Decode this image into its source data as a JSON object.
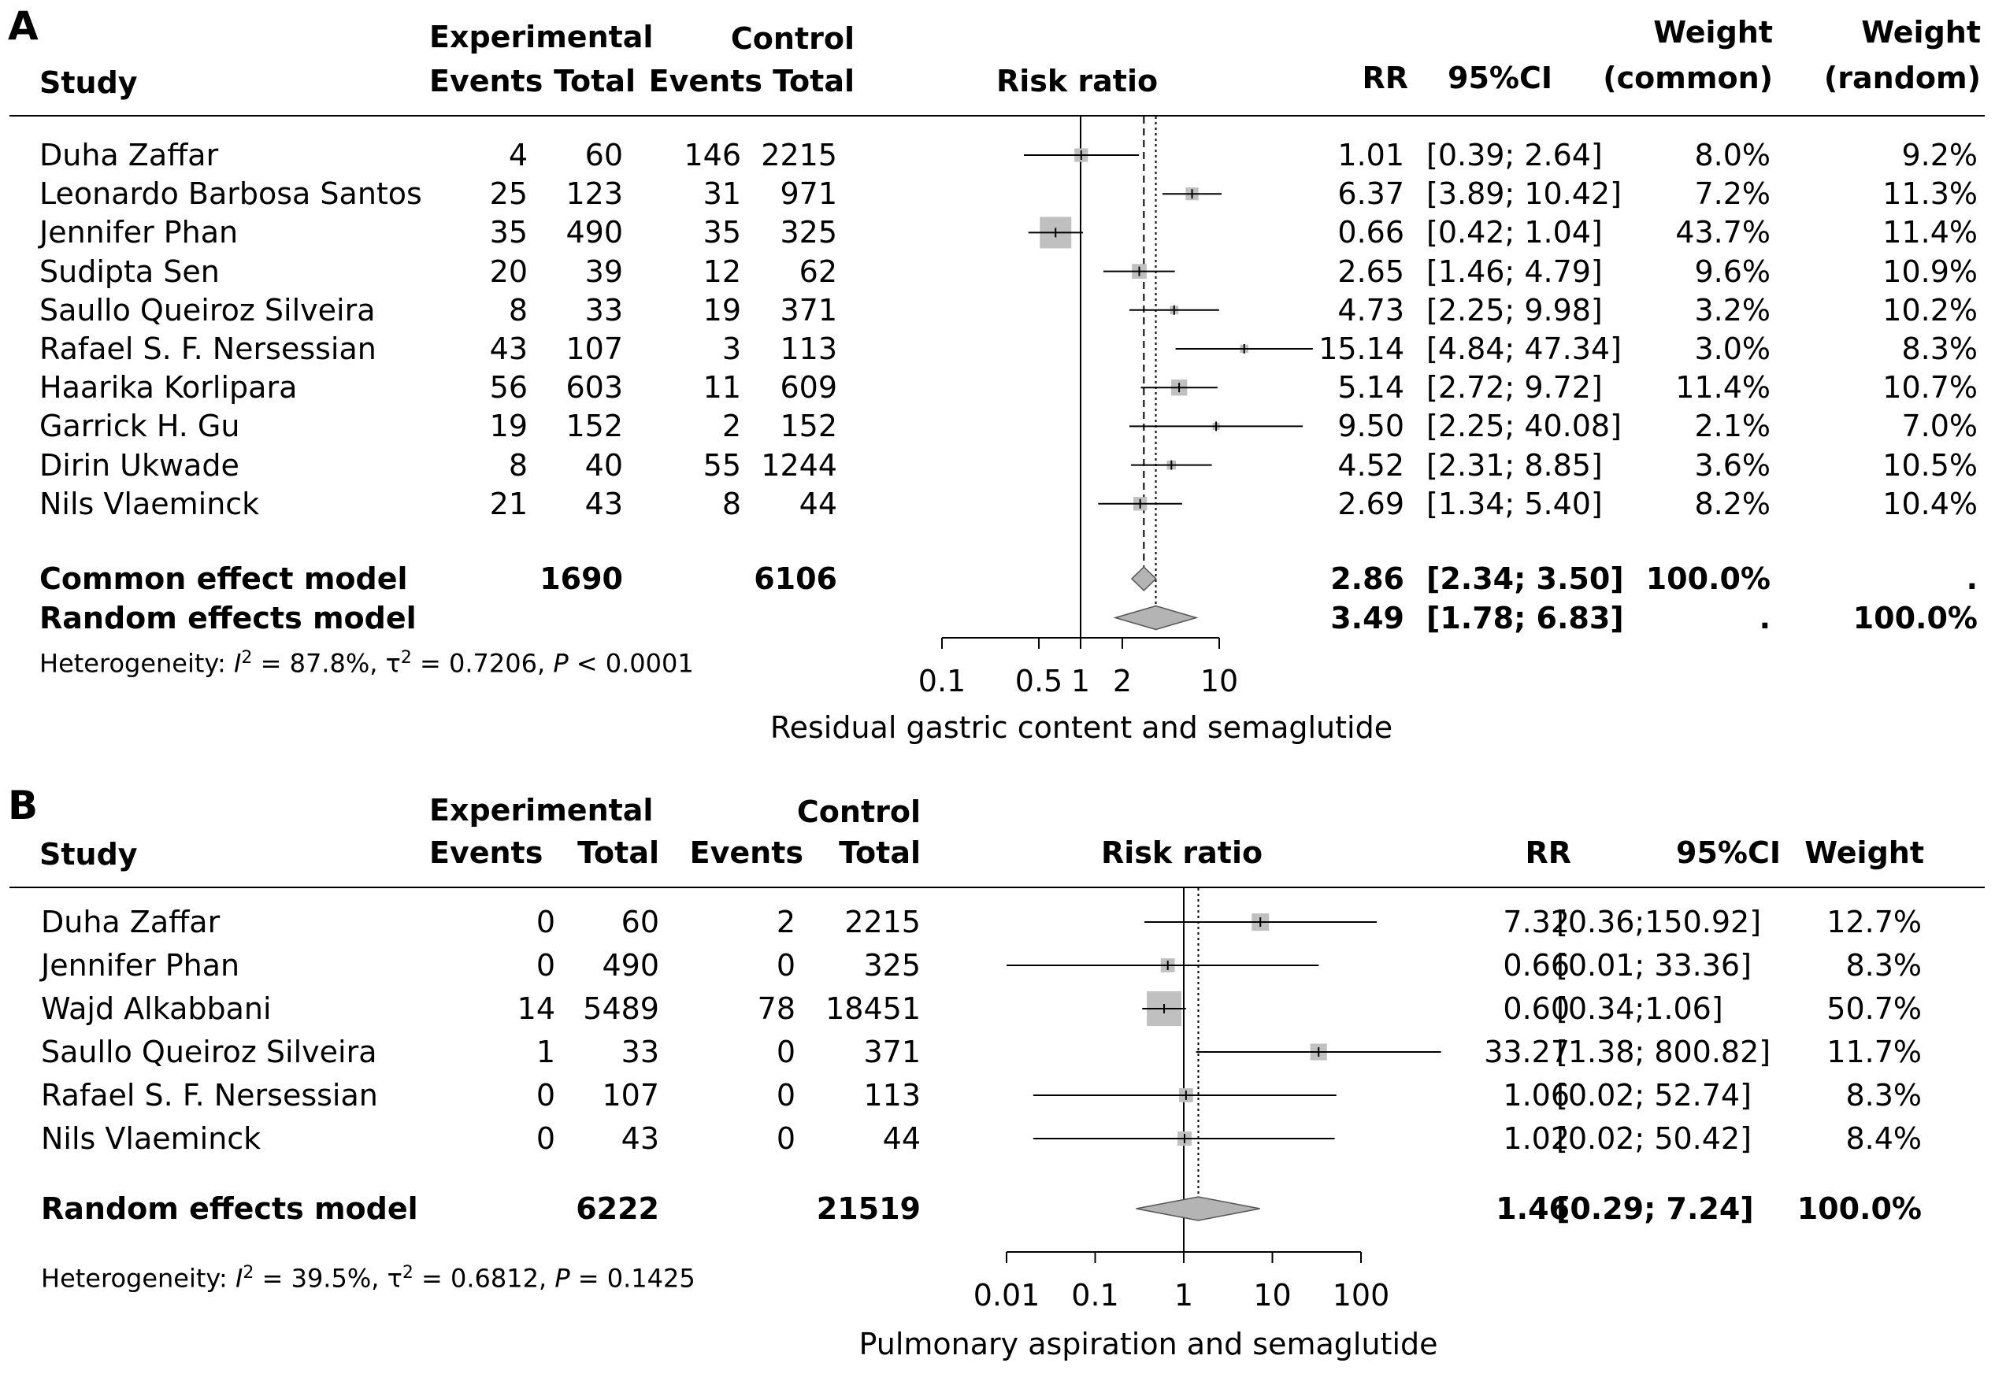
{
  "chart_data": [
    {
      "type": "forest",
      "panel_label": "A",
      "headers": {
        "study": "Study",
        "experimental": "Experimental",
        "control": "Control",
        "exp_events": "Events",
        "exp_total": "Total",
        "ctrl_events": "Events",
        "ctrl_total": "Total",
        "risk_ratio": "Risk ratio",
        "rr": "RR",
        "ci": "95%CI",
        "weight1_top": "Weight",
        "weight1_bottom": "(common)",
        "weight2_top": "Weight",
        "weight2_bottom": "(random)"
      },
      "studies": [
        {
          "name": "Duha Zaffar",
          "exp_events": "4",
          "exp_total": "60",
          "ctrl_events": "146",
          "ctrl_total": "2215",
          "rr_text": "1.01",
          "ci_text": "[0.39; 2.64]",
          "w_common": "8.0%",
          "w_random": "9.2%",
          "rr": 1.01,
          "lo": 0.39,
          "hi": 2.64,
          "w": 8.0
        },
        {
          "name": "Leonardo Barbosa Santos",
          "exp_events": "25",
          "exp_total": "123",
          "ctrl_events": "31",
          "ctrl_total": "971",
          "rr_text": "6.37",
          "ci_text": "[3.89; 10.42]",
          "w_common": "7.2%",
          "w_random": "11.3%",
          "rr": 6.37,
          "lo": 3.89,
          "hi": 10.42,
          "w": 7.2
        },
        {
          "name": "Jennifer Phan",
          "exp_events": "35",
          "exp_total": "490",
          "ctrl_events": "35",
          "ctrl_total": "325",
          "rr_text": "0.66",
          "ci_text": "[0.42; 1.04]",
          "w_common": "43.7%",
          "w_random": "11.4%",
          "rr": 0.66,
          "lo": 0.42,
          "hi": 1.04,
          "w": 43.7
        },
        {
          "name": "Sudipta Sen",
          "exp_events": "20",
          "exp_total": "39",
          "ctrl_events": "12",
          "ctrl_total": "62",
          "rr_text": "2.65",
          "ci_text": "[1.46; 4.79]",
          "w_common": "9.6%",
          "w_random": "10.9%",
          "rr": 2.65,
          "lo": 1.46,
          "hi": 4.79,
          "w": 9.6
        },
        {
          "name": "Saullo Queiroz Silveira",
          "exp_events": "8",
          "exp_total": "33",
          "ctrl_events": "19",
          "ctrl_total": "371",
          "rr_text": "4.73",
          "ci_text": "[2.25; 9.98]",
          "w_common": "3.2%",
          "w_random": "10.2%",
          "rr": 4.73,
          "lo": 2.25,
          "hi": 9.98,
          "w": 3.2
        },
        {
          "name": "Rafael S. F. Nersessian",
          "exp_events": "43",
          "exp_total": "107",
          "ctrl_events": "3",
          "ctrl_total": "113",
          "rr_text": "15.14",
          "ci_text": "[4.84; 47.34]",
          "w_common": "3.0%",
          "w_random": "8.3%",
          "rr": 15.14,
          "lo": 4.84,
          "hi": 47.34,
          "w": 3.0
        },
        {
          "name": "Haarika Korlipara",
          "exp_events": "56",
          "exp_total": "603",
          "ctrl_events": "11",
          "ctrl_total": "609",
          "rr_text": "5.14",
          "ci_text": "[2.72; 9.72]",
          "w_common": "11.4%",
          "w_random": "10.7%",
          "rr": 5.14,
          "lo": 2.72,
          "hi": 9.72,
          "w": 11.4
        },
        {
          "name": "Garrick H. Gu",
          "exp_events": "19",
          "exp_total": "152",
          "ctrl_events": "2",
          "ctrl_total": "152",
          "rr_text": "9.50",
          "ci_text": "[2.25; 40.08]",
          "w_common": "2.1%",
          "w_random": "7.0%",
          "rr": 9.5,
          "lo": 2.25,
          "hi": 40.08,
          "w": 2.1
        },
        {
          "name": "Dirin Ukwade",
          "exp_events": "8",
          "exp_total": "40",
          "ctrl_events": "55",
          "ctrl_total": "1244",
          "rr_text": "4.52",
          "ci_text": "[2.31; 8.85]",
          "w_common": "3.6%",
          "w_random": "10.5%",
          "rr": 4.52,
          "lo": 2.31,
          "hi": 8.85,
          "w": 3.6
        },
        {
          "name": "Nils Vlaeminck",
          "exp_events": "21",
          "exp_total": "43",
          "ctrl_events": "8",
          "ctrl_total": "44",
          "rr_text": "2.69",
          "ci_text": "[1.34; 5.40]",
          "w_common": "8.2%",
          "w_random": "10.4%",
          "rr": 2.69,
          "lo": 1.34,
          "hi": 5.4,
          "w": 8.2
        }
      ],
      "summaries": [
        {
          "name": "Common effect model",
          "exp_total": "1690",
          "ctrl_total": "6106",
          "rr_text": "2.86",
          "ci_text": "[2.34; 3.50]",
          "w_common": "100.0%",
          "w_random": ".",
          "rr": 2.86,
          "lo": 2.34,
          "hi": 3.5
        },
        {
          "name": "Random effects model",
          "exp_total": "",
          "ctrl_total": "",
          "rr_text": "3.49",
          "ci_text": "[1.78; 6.83]",
          "w_common": ".",
          "w_random": "100.0%",
          "rr": 3.49,
          "lo": 1.78,
          "hi": 6.83
        }
      ],
      "heterogeneity": {
        "prefix": "Heterogeneity: ",
        "i2_symbol": "I",
        "i2_value": " = 87.8%, ",
        "tau_symbol": "τ",
        "tau_value": " = 0.7206, ",
        "p_symbol": "P",
        "p_value": " < 0.0001"
      },
      "x_axis": {
        "scale": "log",
        "ticks": [
          0.1,
          0.5,
          1,
          2,
          10
        ],
        "tick_labels": [
          "0.1",
          "0.5",
          "1",
          "2",
          "10"
        ],
        "label": "Residual gastric content and semaglutide"
      },
      "null_line": 1,
      "dashed_line": 2.86,
      "dotted_line": 3.49
    },
    {
      "type": "forest",
      "panel_label": "B",
      "headers": {
        "study": "Study",
        "experimental": "Experimental",
        "control": "Control",
        "exp_events": "Events",
        "exp_total": "Total",
        "ctrl_events": "Events",
        "ctrl_total": "Total",
        "risk_ratio": "Risk ratio",
        "rr": "RR",
        "ci": "95%CI",
        "weight": "Weight"
      },
      "studies": [
        {
          "name": "Duha Zaffar",
          "exp_events": "0",
          "exp_total": "60",
          "ctrl_events": "2",
          "ctrl_total": "2215",
          "rr_text": "7.32",
          "ci_text": "[0.36;150.92]",
          "weight": "12.7%",
          "rr": 7.32,
          "lo": 0.36,
          "hi": 150.92,
          "w": 12.7
        },
        {
          "name": "Jennifer Phan",
          "exp_events": "0",
          "exp_total": "490",
          "ctrl_events": "0",
          "ctrl_total": "325",
          "rr_text": "0.66",
          "ci_text": "[0.01; 33.36]",
          "weight": "8.3%",
          "rr": 0.66,
          "lo": 0.01,
          "hi": 33.36,
          "w": 8.3
        },
        {
          "name": "Wajd Alkabbani",
          "exp_events": "14",
          "exp_total": "5489",
          "ctrl_events": "78",
          "ctrl_total": "18451",
          "rr_text": "0.60",
          "ci_text": "[0.34;1.06]",
          "weight": "50.7%",
          "rr": 0.6,
          "lo": 0.34,
          "hi": 1.06,
          "w": 50.7
        },
        {
          "name": "Saullo Queiroz Silveira",
          "exp_events": "1",
          "exp_total": "33",
          "ctrl_events": "0",
          "ctrl_total": "371",
          "rr_text": "33.27",
          "ci_text": "[1.38; 800.82]",
          "weight": "11.7%",
          "rr": 33.27,
          "lo": 1.38,
          "hi": 800.82,
          "w": 11.7
        },
        {
          "name": "Rafael S. F. Nersessian",
          "exp_events": "0",
          "exp_total": "107",
          "ctrl_events": "0",
          "ctrl_total": "113",
          "rr_text": "1.06",
          "ci_text": "[0.02; 52.74]",
          "weight": "8.3%",
          "rr": 1.06,
          "lo": 0.02,
          "hi": 52.74,
          "w": 8.3
        },
        {
          "name": "Nils Vlaeminck",
          "exp_events": "0",
          "exp_total": "43",
          "ctrl_events": "0",
          "ctrl_total": "44",
          "rr_text": "1.02",
          "ci_text": "[0.02; 50.42]",
          "weight": "8.4%",
          "rr": 1.02,
          "lo": 0.02,
          "hi": 50.42,
          "w": 8.4
        }
      ],
      "summaries": [
        {
          "name": "Random effects model",
          "exp_total": "6222",
          "ctrl_total": "21519",
          "rr_text": "1.46",
          "ci_text": "[0.29; 7.24]",
          "weight": "100.0%",
          "rr": 1.46,
          "lo": 0.29,
          "hi": 7.24
        }
      ],
      "heterogeneity": {
        "prefix": "Heterogeneity: ",
        "i2_symbol": "I",
        "i2_value": " = 39.5%, ",
        "tau_symbol": "τ",
        "tau_value": " = 0.6812, ",
        "p_symbol": "P",
        "p_value": " = 0.1425"
      },
      "x_axis": {
        "scale": "log",
        "ticks": [
          0.01,
          0.1,
          1,
          10,
          100
        ],
        "tick_labels": [
          "0.01",
          "0.1",
          "1",
          "10",
          "100"
        ],
        "label": "Pulmonary aspiration and semaglutide"
      },
      "null_line": 1,
      "dotted_line": 1.46
    }
  ],
  "colors": {
    "square": "#c0c0c0",
    "diamond": "#b4b4b4",
    "line": "#000000"
  }
}
